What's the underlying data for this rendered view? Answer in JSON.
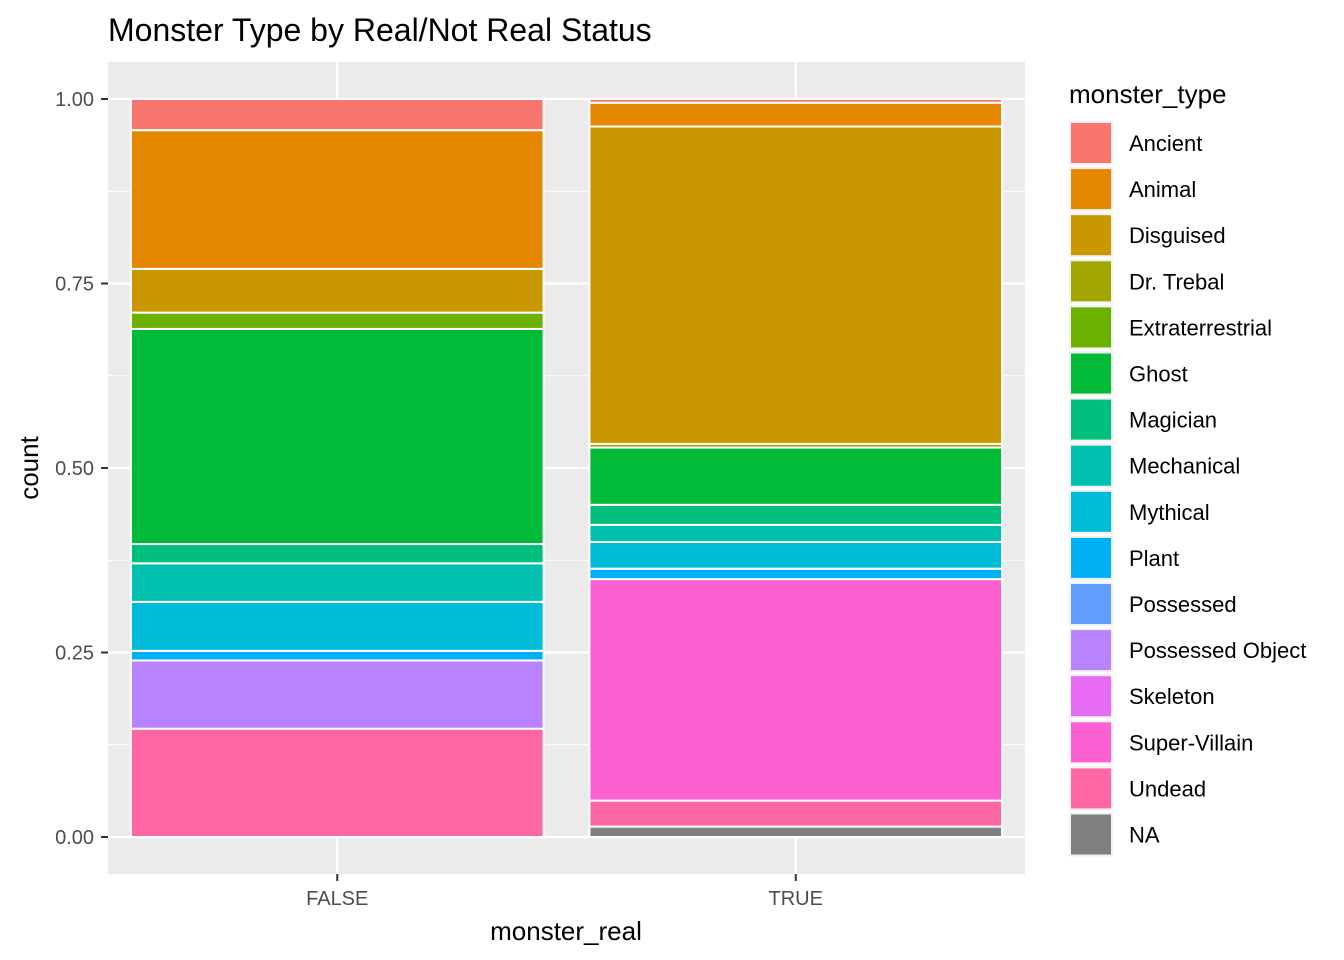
{
  "chart_data": {
    "type": "bar",
    "stacked": "fill",
    "title": "Monster Type by Real/Not Real Status",
    "xlabel": "monster_real",
    "ylabel": "count",
    "ylim": [
      0,
      1
    ],
    "yticks": [
      "0.00",
      "0.25",
      "0.50",
      "0.75",
      "1.00"
    ],
    "ytick_values": [
      0,
      0.25,
      0.5,
      0.75,
      1
    ],
    "categories": [
      "FALSE",
      "TRUE"
    ],
    "grid": true,
    "legend_position": "right",
    "legend_title": "monster_type",
    "series": [
      {
        "name": "Ancient",
        "color": "#F8766D",
        "values": [
          0.042,
          0.005
        ]
      },
      {
        "name": "Animal",
        "color": "#E58700",
        "values": [
          0.187,
          0.032
        ]
      },
      {
        "name": "Disguised",
        "color": "#C99800",
        "values": [
          0.059,
          0.427
        ]
      },
      {
        "name": "Dr. Trebal",
        "color": "#A3A500",
        "values": [
          0.0,
          0.005
        ]
      },
      {
        "name": "Extraterrestrial",
        "color": "#6BB100",
        "values": [
          0.022,
          0.0
        ]
      },
      {
        "name": "Ghost",
        "color": "#00BA38",
        "values": [
          0.29,
          0.077
        ]
      },
      {
        "name": "Magician",
        "color": "#00BF7D",
        "values": [
          0.026,
          0.027
        ]
      },
      {
        "name": "Mechanical",
        "color": "#00C0AF",
        "values": [
          0.052,
          0.023
        ]
      },
      {
        "name": "Mythical",
        "color": "#00BCD8",
        "values": [
          0.066,
          0.036
        ]
      },
      {
        "name": "Plant",
        "color": "#00B0F6",
        "values": [
          0.013,
          0.014
        ]
      },
      {
        "name": "Possessed",
        "color": "#619CFF",
        "values": [
          0.0,
          0.0
        ]
      },
      {
        "name": "Possessed Object",
        "color": "#B983FF",
        "values": [
          0.092,
          0.0
        ]
      },
      {
        "name": "Skeleton",
        "color": "#E76BF3",
        "values": [
          0.0,
          0.0
        ]
      },
      {
        "name": "Super-Villain",
        "color": "#FD61D1",
        "values": [
          0.0,
          0.298
        ]
      },
      {
        "name": "Undead",
        "color": "#FF67A4",
        "values": [
          0.146,
          0.035
        ]
      },
      {
        "name": "NA",
        "color": "#7F7F7F",
        "values": [
          0.0,
          0.014
        ]
      }
    ]
  },
  "colors": {
    "panel_background": "#EBEBEB",
    "grid_major": "#FFFFFF",
    "tick_text": "#4D4D4D"
  }
}
